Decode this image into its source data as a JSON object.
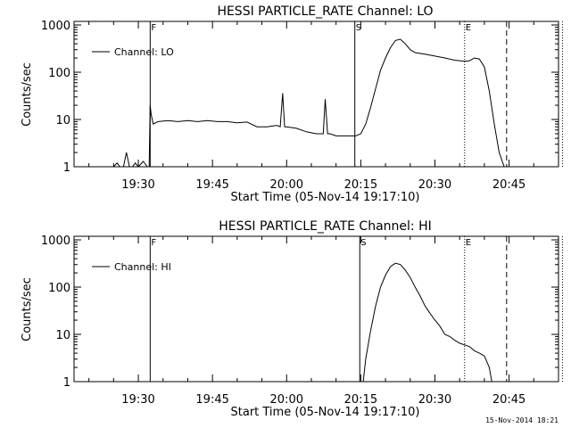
{
  "footer": {
    "timestamp": "15-Nov-2014 18:21"
  },
  "chart_data": [
    {
      "type": "line",
      "title": "HESSI PARTICLE_RATE Channel: LO",
      "xlabel": "Start Time (05-Nov-14 19:17:10)",
      "ylabel": "Counts/sec",
      "yscale": "log",
      "xlim": [
        "19:17",
        "20:55"
      ],
      "ylim": [
        1,
        1000
      ],
      "x_ticks": [
        "19:30",
        "19:45",
        "20:00",
        "20:15",
        "20:30",
        "20:45"
      ],
      "y_ticks": [
        "1",
        "10",
        "100",
        "1000"
      ],
      "legend": {
        "entries": [
          "Channel: LO"
        ],
        "placement": "top-left"
      },
      "markers": [
        {
          "label": "F",
          "time": "19:32.4",
          "style": "solid"
        },
        {
          "label": "S",
          "time": "20:13.8",
          "style": "solid"
        },
        {
          "label": "E",
          "time": "20:36.0",
          "style": "dotted"
        },
        {
          "label": "",
          "time": "20:44.5",
          "style": "dashed"
        },
        {
          "label": "",
          "time": "20:55.8",
          "style": "dotted"
        }
      ],
      "series": [
        {
          "name": "Channel: LO",
          "x": [
            "19:20.0",
            "19:21.0",
            "19:22.0",
            "19:23.5",
            "19:24.0",
            "19:25.0",
            "19:25.7",
            "19:26.3",
            "19:27.0",
            "19:27.6",
            "19:28.2",
            "19:28.8",
            "19:29.4",
            "19:30.0",
            "19:31.0",
            "19:31.8",
            "19:32.2",
            "19:32.4",
            "19:32.6",
            "19:33.0",
            "19:34.0",
            "19:36.0",
            "19:38.0",
            "19:40.0",
            "19:42.0",
            "19:44.0",
            "19:46.0",
            "19:48.0",
            "19:50.0",
            "19:52.0",
            "19:54.0",
            "19:56.0",
            "19:58.0",
            "19:58.7",
            "19:59.2",
            "19:59.6",
            "20:00.0",
            "20:02.0",
            "20:04.0",
            "20:06.0",
            "20:07.4",
            "20:07.8",
            "20:08.3",
            "20:08.8",
            "20:10.0",
            "20:12.0",
            "20:14.0",
            "20:15.0",
            "20:16.0",
            "20:17.0",
            "20:18.0",
            "20:19.0",
            "20:20.0",
            "20:21.0",
            "20:22.0",
            "20:23.0",
            "20:24.0",
            "20:25.0",
            "20:26.0",
            "20:28.0",
            "20:30.0",
            "20:32.0",
            "20:34.0",
            "20:36.0",
            "20:37.0",
            "20:38.0",
            "20:39.0",
            "20:40.0",
            "20:41.0",
            "20:42.0",
            "20:43.0",
            "20:44.0"
          ],
          "values": [
            1,
            0.7,
            1,
            1,
            0.7,
            1,
            1.2,
            1,
            1,
            2,
            1,
            1,
            1.2,
            1,
            1.3,
            1,
            1,
            20,
            13,
            8,
            9,
            9.5,
            9,
            9.5,
            9,
            9.5,
            9,
            9,
            8.5,
            8.8,
            7,
            7,
            7.5,
            7,
            36,
            7,
            7,
            6.5,
            5.5,
            5,
            5,
            27,
            5,
            5,
            4.5,
            4.5,
            4.5,
            5,
            8,
            18,
            45,
            110,
            200,
            330,
            470,
            500,
            400,
            300,
            260,
            240,
            220,
            200,
            180,
            170,
            175,
            200,
            190,
            130,
            40,
            8,
            2,
            1
          ]
        }
      ]
    },
    {
      "type": "line",
      "title": "HESSI PARTICLE_RATE Channel: HI",
      "xlabel": "Start Time (05-Nov-14 19:17:10)",
      "ylabel": "Counts/sec",
      "yscale": "log",
      "xlim": [
        "19:17",
        "20:55"
      ],
      "ylim": [
        1,
        1000
      ],
      "x_ticks": [
        "19:30",
        "19:45",
        "20:00",
        "20:15",
        "20:30",
        "20:45"
      ],
      "y_ticks": [
        "1",
        "10",
        "100",
        "1000"
      ],
      "legend": {
        "entries": [
          "Channel: HI"
        ],
        "placement": "top-left"
      },
      "markers": [
        {
          "label": "F",
          "time": "19:32.4",
          "style": "solid"
        },
        {
          "label": "S",
          "time": "20:14.8",
          "style": "solid"
        },
        {
          "label": "E",
          "time": "20:36.0",
          "style": "dotted"
        },
        {
          "label": "",
          "time": "20:44.5",
          "style": "dashed"
        },
        {
          "label": "",
          "time": "20:55.8",
          "style": "dotted"
        }
      ],
      "series": [
        {
          "name": "Channel: HI",
          "x": [
            "20:15.5",
            "20:16.0",
            "20:17.0",
            "20:18.0",
            "20:19.0",
            "20:20.0",
            "20:21.0",
            "20:22.0",
            "20:23.0",
            "20:24.0",
            "20:25.0",
            "20:26.0",
            "20:27.0",
            "20:28.0",
            "20:29.0",
            "20:30.0",
            "20:31.0",
            "20:32.0",
            "20:33.0",
            "20:34.0",
            "20:35.0",
            "20:36.0",
            "20:37.0",
            "20:38.0",
            "20:39.0",
            "20:40.0",
            "20:41.0",
            "20:41.5"
          ],
          "values": [
            1,
            3,
            12,
            40,
            100,
            180,
            270,
            320,
            300,
            230,
            160,
            100,
            65,
            40,
            28,
            20,
            15,
            10,
            9,
            7.5,
            6.5,
            6,
            5.5,
            4.5,
            4,
            3.5,
            2,
            1
          ]
        }
      ]
    }
  ]
}
